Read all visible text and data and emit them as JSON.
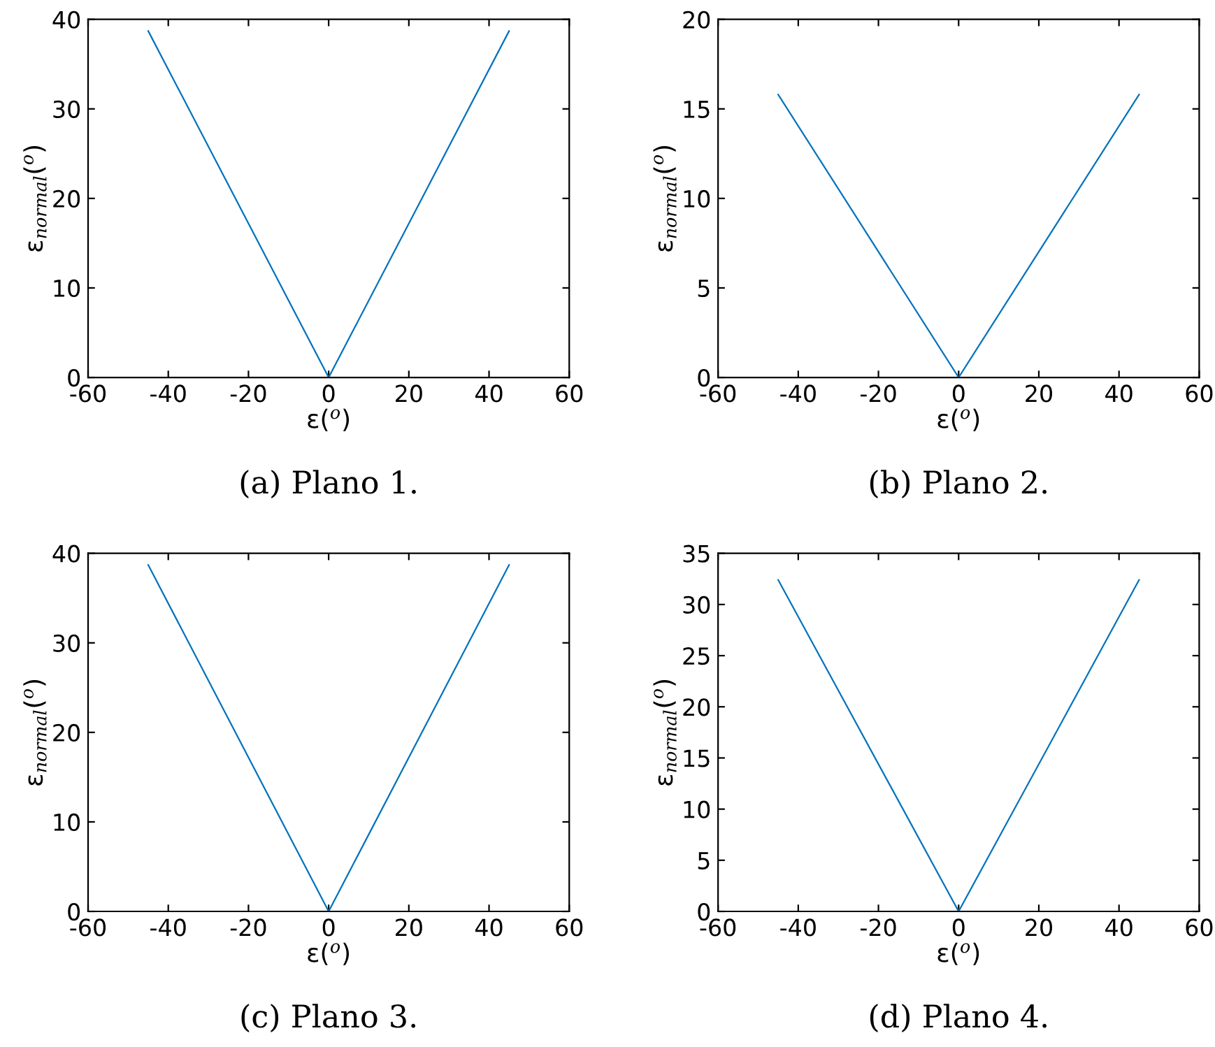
{
  "chart_data": [
    {
      "type": "line",
      "xlabel": "ε($^{o}$)",
      "ylabel": "ε$_{normal}$($^{o}$)",
      "x": [
        -45,
        0,
        45
      ],
      "series": [
        {
          "color": "#0072bd",
          "values": [
            38.7,
            0,
            38.7
          ]
        }
      ],
      "xlim": [
        -60,
        60
      ],
      "xticks": [
        -60,
        -40,
        -20,
        0,
        20,
        40,
        60
      ],
      "ylim": [
        0,
        40
      ],
      "yticks": [
        0,
        10,
        20,
        30,
        40
      ],
      "annotations": [
        "(a) Plano 1."
      ]
    },
    {
      "type": "line",
      "xlabel": "ε($^{o}$)",
      "ylabel": "ε$_{normal}$($^{o}$)",
      "x": [
        -45,
        0,
        45
      ],
      "series": [
        {
          "color": "#0072bd",
          "values": [
            15.8,
            0,
            15.8
          ]
        }
      ],
      "xlim": [
        -60,
        60
      ],
      "xticks": [
        -60,
        -40,
        -20,
        0,
        20,
        40,
        60
      ],
      "ylim": [
        0,
        20
      ],
      "yticks": [
        0,
        5,
        10,
        15,
        20
      ],
      "annotations": [
        "(b) Plano 2."
      ]
    },
    {
      "type": "line",
      "xlabel": "ε($^{o}$)",
      "ylabel": "ε$_{normal}$($^{o}$)",
      "x": [
        -45,
        0,
        45
      ],
      "series": [
        {
          "color": "#0072bd",
          "values": [
            38.7,
            0,
            38.7
          ]
        }
      ],
      "xlim": [
        -60,
        60
      ],
      "xticks": [
        -60,
        -40,
        -20,
        0,
        20,
        40,
        60
      ],
      "ylim": [
        0,
        40
      ],
      "yticks": [
        0,
        10,
        20,
        30,
        40
      ],
      "annotations": [
        "(c) Plano 3."
      ]
    },
    {
      "type": "line",
      "xlabel": "ε($^{o}$)",
      "ylabel": "ε$_{normal}$($^{o}$)",
      "x": [
        -45,
        0,
        45
      ],
      "series": [
        {
          "color": "#0072bd",
          "values": [
            32.4,
            0,
            32.4
          ]
        }
      ],
      "xlim": [
        -60,
        60
      ],
      "xticks": [
        -60,
        -40,
        -20,
        0,
        20,
        40,
        60
      ],
      "ylim": [
        0,
        35
      ],
      "yticks": [
        0,
        5,
        10,
        15,
        20,
        25,
        30,
        35
      ],
      "annotations": [
        "(d) Plano 4."
      ]
    }
  ]
}
